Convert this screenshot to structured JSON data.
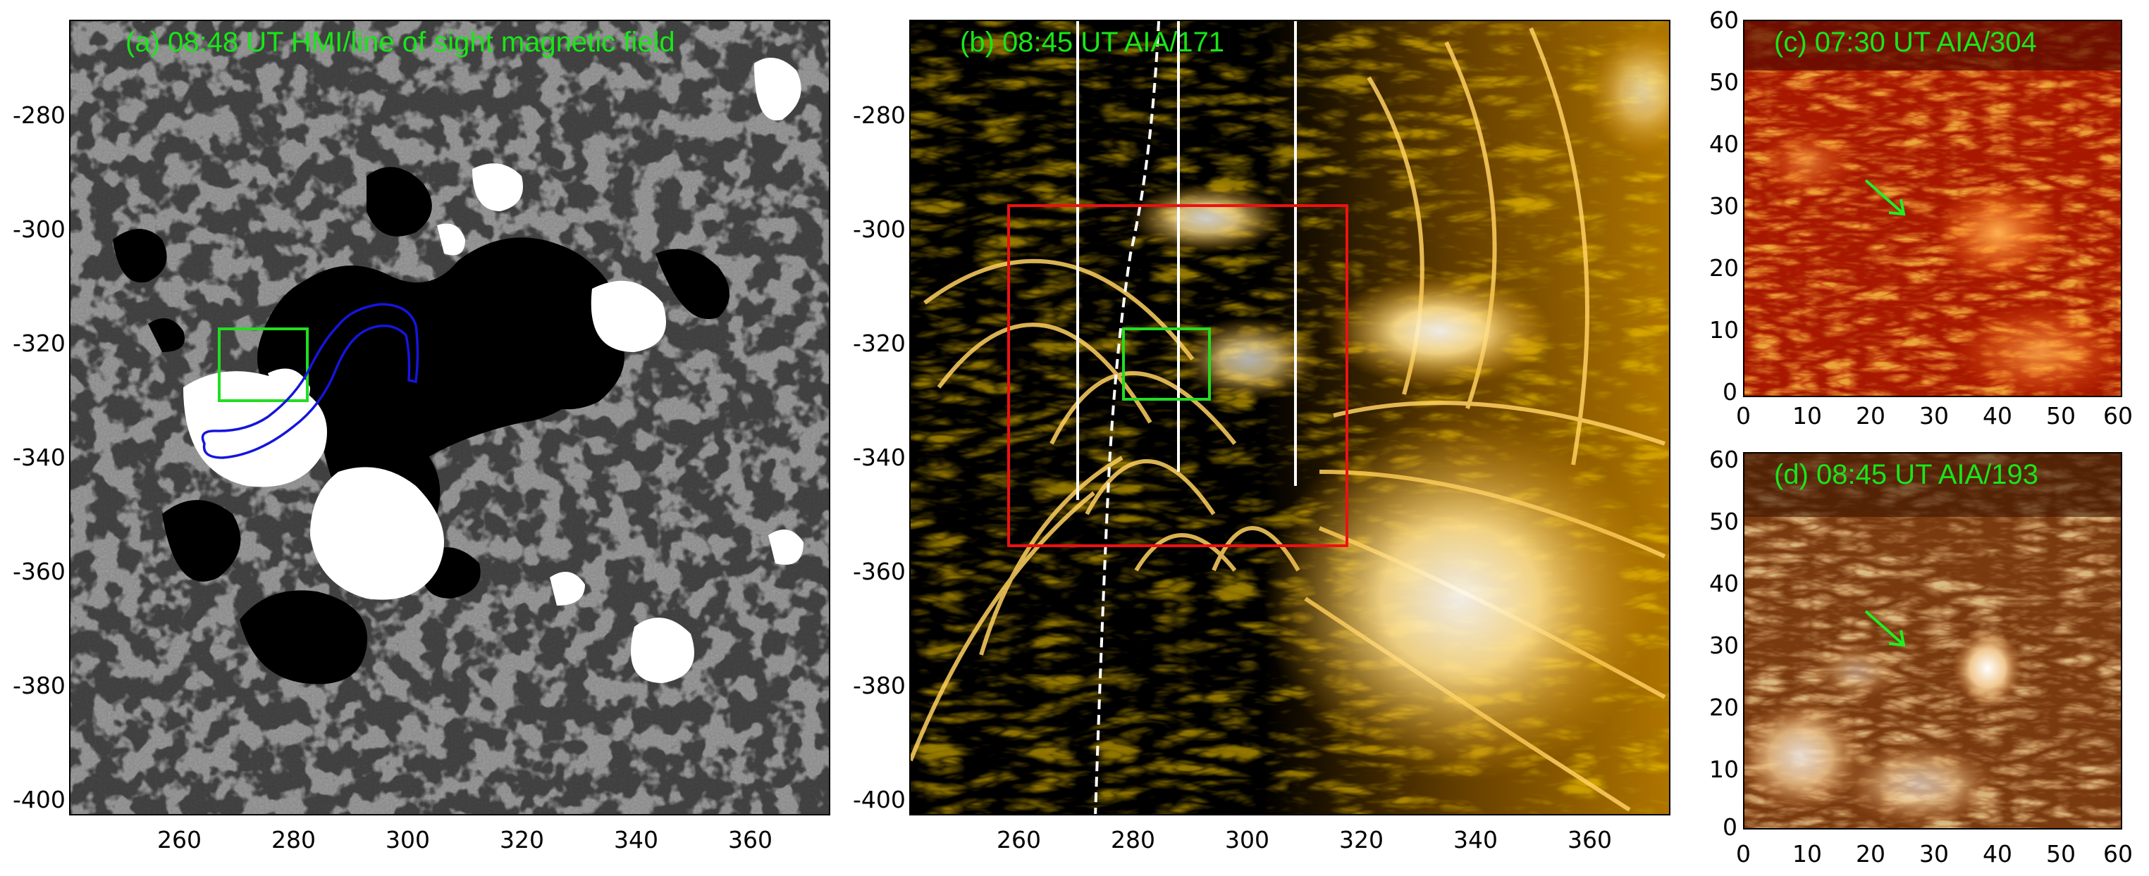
{
  "panels": {
    "a": {
      "title": "(a) 08:48 UT HMI/line of sight magnetic field",
      "xticks": [
        "260",
        "280",
        "300",
        "320",
        "340",
        "360"
      ],
      "yticks": [
        "-280",
        "-300",
        "-320",
        "-340",
        "-360",
        "-380",
        "-400"
      ]
    },
    "b": {
      "title": "(b) 08:45 UT AIA/171",
      "xticks": [
        "260",
        "280",
        "300",
        "320",
        "340",
        "360"
      ],
      "yticks": [
        "-280",
        "-300",
        "-320",
        "-340",
        "-360",
        "-380",
        "-400"
      ]
    },
    "c": {
      "title": "(c) 07:30 UT AIA/304",
      "xticks": [
        "0",
        "10",
        "20",
        "30",
        "40",
        "50",
        "60"
      ],
      "yticks": [
        "60",
        "50",
        "40",
        "30",
        "20",
        "10",
        "0"
      ]
    },
    "d": {
      "title": "(d) 08:45 UT AIA/193",
      "xticks": [
        "0",
        "10",
        "20",
        "30",
        "40",
        "50",
        "60"
      ],
      "yticks": [
        "60",
        "50",
        "40",
        "30",
        "20",
        "10",
        "0"
      ]
    }
  },
  "colors": {
    "label_green": "#19e619",
    "box_green": "#22dd22",
    "box_red": "#ee1111",
    "contour_blue": "#1515dd",
    "arrow_green": "#22ee22"
  }
}
